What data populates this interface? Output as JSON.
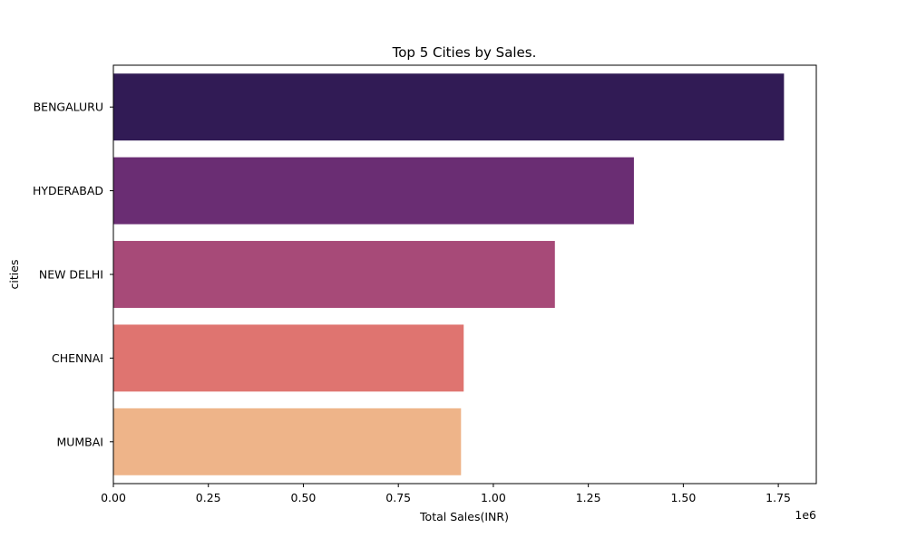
{
  "chart_data": {
    "type": "bar",
    "orientation": "horizontal",
    "title": "Top 5 Cities by Sales.",
    "xlabel": "Total Sales(INR)",
    "ylabel": "cities",
    "x_offset_label": "1e6",
    "xlim": [
      0,
      1850000
    ],
    "xticks": [
      0,
      250000,
      500000,
      750000,
      1000000,
      1250000,
      1500000,
      1750000
    ],
    "xtick_labels": [
      "0.00",
      "0.25",
      "0.50",
      "0.75",
      "1.00",
      "1.25",
      "1.50",
      "1.75"
    ],
    "categories": [
      "BENGALURU",
      "HYDERABAD",
      "NEW DELHI",
      "CHENNAI",
      "MUMBAI"
    ],
    "values": [
      1765000,
      1370000,
      1162000,
      922000,
      915000
    ],
    "colors": [
      "#311b55",
      "#6a2d73",
      "#a74a78",
      "#df7470",
      "#eeb489"
    ],
    "grid": false,
    "legend": "none"
  }
}
